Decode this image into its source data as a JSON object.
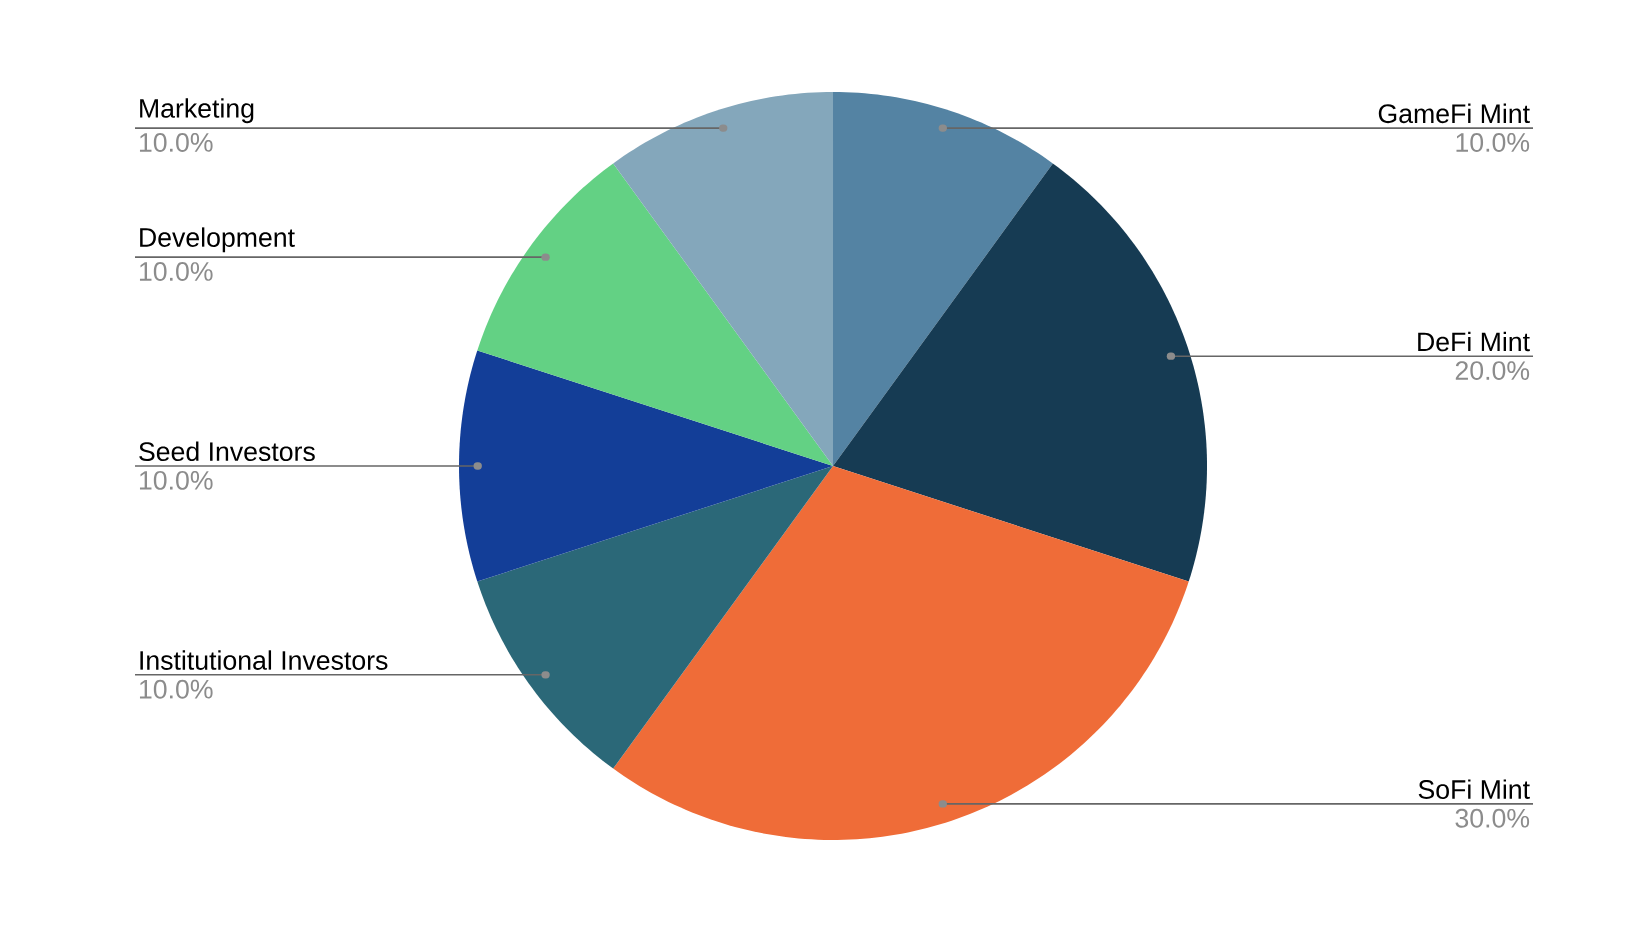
{
  "chart_data": {
    "type": "pie",
    "categories": [
      "GameFi Mint",
      "DeFi Mint",
      "SoFi Mint",
      "Institutional Investors",
      "Seed Investors",
      "Development",
      "Marketing"
    ],
    "values": [
      10,
      20,
      30,
      10,
      10,
      10,
      10
    ],
    "colors": [
      "#5483a3",
      "#163b53",
      "#ef6c38",
      "#2b6878",
      "#133e98",
      "#63d184",
      "#84a7bb"
    ],
    "value_labels": [
      "10.0%",
      "20.0%",
      "30.0%",
      "10.0%",
      "10.0%",
      "10.0%",
      "10.0%"
    ]
  }
}
